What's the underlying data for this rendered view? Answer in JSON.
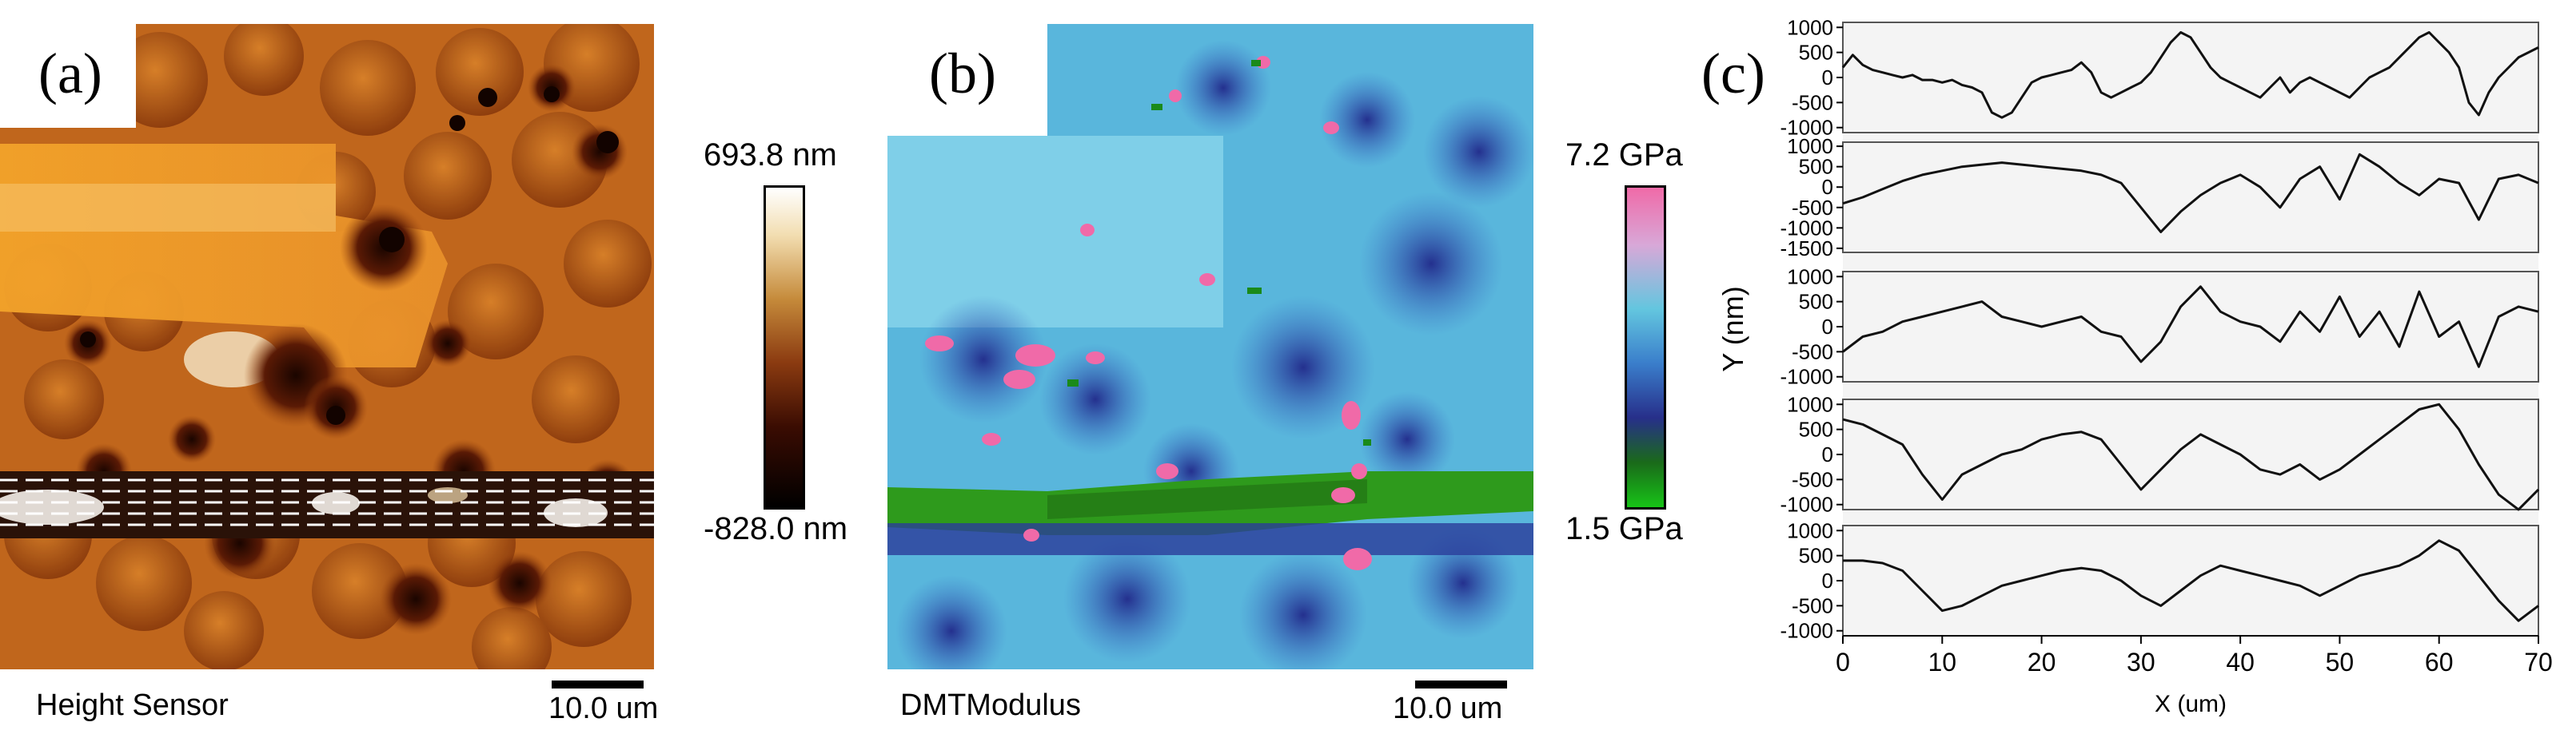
{
  "panels": {
    "a": {
      "letter": "(a)",
      "caption": "Height Sensor",
      "scalebar": "10.0 um",
      "colorbar_max": "693.8 nm",
      "colorbar_min": "-828.0 nm"
    },
    "b": {
      "letter": "(b)",
      "caption": "DMTModulus",
      "scalebar": "10.0 um",
      "colorbar_max": "7.2 GPa",
      "colorbar_min": "1.5 GPa"
    },
    "c": {
      "letter": "(c)"
    }
  },
  "chart_data": {
    "type": "line",
    "xlabel": "X (um)",
    "ylabel": "Y (nm)",
    "xlim": [
      0,
      70
    ],
    "xticks": [
      0,
      10,
      20,
      30,
      40,
      50,
      60,
      70
    ],
    "subplots": [
      {
        "yticks": [
          "1000",
          "500",
          "0",
          "-500",
          "-1000"
        ],
        "ylim": [
          -1100,
          1100
        ],
        "x": [
          0,
          1,
          2,
          3,
          4,
          5,
          6,
          7,
          8,
          9,
          10,
          11,
          12,
          13,
          14,
          15,
          16,
          17,
          18,
          19,
          20,
          21,
          22,
          23,
          24,
          25,
          26,
          27,
          28,
          29,
          30,
          31,
          32,
          33,
          34,
          35,
          36,
          37,
          38,
          39,
          40,
          41,
          42,
          43,
          44,
          45,
          46,
          47,
          48,
          49,
          50,
          51,
          52,
          53,
          54,
          55,
          56,
          57,
          58,
          59,
          60,
          61,
          62,
          63,
          64,
          65,
          66,
          67,
          68,
          69,
          70
        ],
        "y": [
          200,
          450,
          250,
          150,
          100,
          50,
          0,
          50,
          -50,
          -50,
          -100,
          -50,
          -150,
          -200,
          -300,
          -700,
          -800,
          -700,
          -400,
          -100,
          0,
          50,
          100,
          150,
          300,
          100,
          -300,
          -400,
          -300,
          -200,
          -100,
          100,
          400,
          700,
          900,
          800,
          500,
          200,
          0,
          -100,
          -200,
          -300,
          -400,
          -200,
          0,
          -300,
          -100,
          0,
          -100,
          -200,
          -300,
          -400,
          -200,
          0,
          100,
          200,
          400,
          600,
          800,
          900,
          700,
          500,
          200,
          -500,
          -750,
          -300,
          0,
          200,
          400,
          500,
          600
        ]
      },
      {
        "yticks": [
          "1000",
          "500",
          "0",
          "-500",
          "-1000",
          "-1500"
        ],
        "ylim": [
          -1600,
          1100
        ],
        "x": [
          0,
          2,
          4,
          6,
          8,
          10,
          12,
          14,
          16,
          18,
          20,
          22,
          24,
          26,
          28,
          30,
          32,
          34,
          36,
          38,
          40,
          42,
          44,
          46,
          48,
          50,
          52,
          54,
          56,
          58,
          60,
          62,
          64,
          66,
          68,
          70
        ],
        "y": [
          -400,
          -250,
          -50,
          150,
          300,
          400,
          500,
          550,
          600,
          550,
          500,
          450,
          400,
          300,
          100,
          -500,
          -1100,
          -600,
          -200,
          100,
          300,
          0,
          -500,
          200,
          500,
          -300,
          800,
          500,
          100,
          -200,
          200,
          100,
          -800,
          200,
          300,
          100
        ]
      },
      {
        "yticks": [
          "1000",
          "500",
          "0",
          "-500",
          "-1000"
        ],
        "ylim": [
          -1100,
          1100
        ],
        "x": [
          0,
          2,
          4,
          6,
          8,
          10,
          12,
          14,
          16,
          18,
          20,
          22,
          24,
          26,
          28,
          30,
          32,
          34,
          36,
          38,
          40,
          42,
          44,
          46,
          48,
          50,
          52,
          54,
          56,
          58,
          60,
          62,
          64,
          66,
          68,
          70
        ],
        "y": [
          -500,
          -200,
          -100,
          100,
          200,
          300,
          400,
          500,
          200,
          100,
          0,
          100,
          200,
          -100,
          -200,
          -700,
          -300,
          400,
          800,
          300,
          100,
          0,
          -300,
          300,
          -100,
          600,
          -200,
          300,
          -400,
          700,
          -200,
          100,
          -800,
          200,
          400,
          300
        ]
      },
      {
        "yticks": [
          "1000",
          "500",
          "0",
          "-500",
          "-1000"
        ],
        "ylim": [
          -1100,
          1100
        ],
        "x": [
          0,
          2,
          4,
          6,
          8,
          10,
          12,
          14,
          16,
          18,
          20,
          22,
          24,
          26,
          28,
          30,
          32,
          34,
          36,
          38,
          40,
          42,
          44,
          46,
          48,
          50,
          52,
          54,
          56,
          58,
          60,
          62,
          64,
          66,
          68,
          70
        ],
        "y": [
          700,
          600,
          400,
          200,
          -400,
          -900,
          -400,
          -200,
          0,
          100,
          300,
          400,
          450,
          300,
          -200,
          -700,
          -300,
          100,
          400,
          200,
          0,
          -300,
          -400,
          -200,
          -500,
          -300,
          0,
          300,
          600,
          900,
          1000,
          500,
          -200,
          -800,
          -1100,
          -700
        ]
      },
      {
        "yticks": [
          "1000",
          "500",
          "0",
          "-500",
          "-1000"
        ],
        "ylim": [
          -1100,
          1100
        ],
        "x": [
          0,
          2,
          4,
          6,
          8,
          10,
          12,
          14,
          16,
          18,
          20,
          22,
          24,
          26,
          28,
          30,
          32,
          34,
          36,
          38,
          40,
          42,
          44,
          46,
          48,
          50,
          52,
          54,
          56,
          58,
          60,
          62,
          64,
          66,
          68,
          70
        ],
        "y": [
          400,
          400,
          350,
          200,
          -200,
          -600,
          -500,
          -300,
          -100,
          0,
          100,
          200,
          250,
          200,
          0,
          -300,
          -500,
          -200,
          100,
          300,
          200,
          100,
          0,
          -100,
          -300,
          -100,
          100,
          200,
          300,
          500,
          800,
          600,
          100,
          -400,
          -800,
          -500
        ]
      }
    ]
  }
}
